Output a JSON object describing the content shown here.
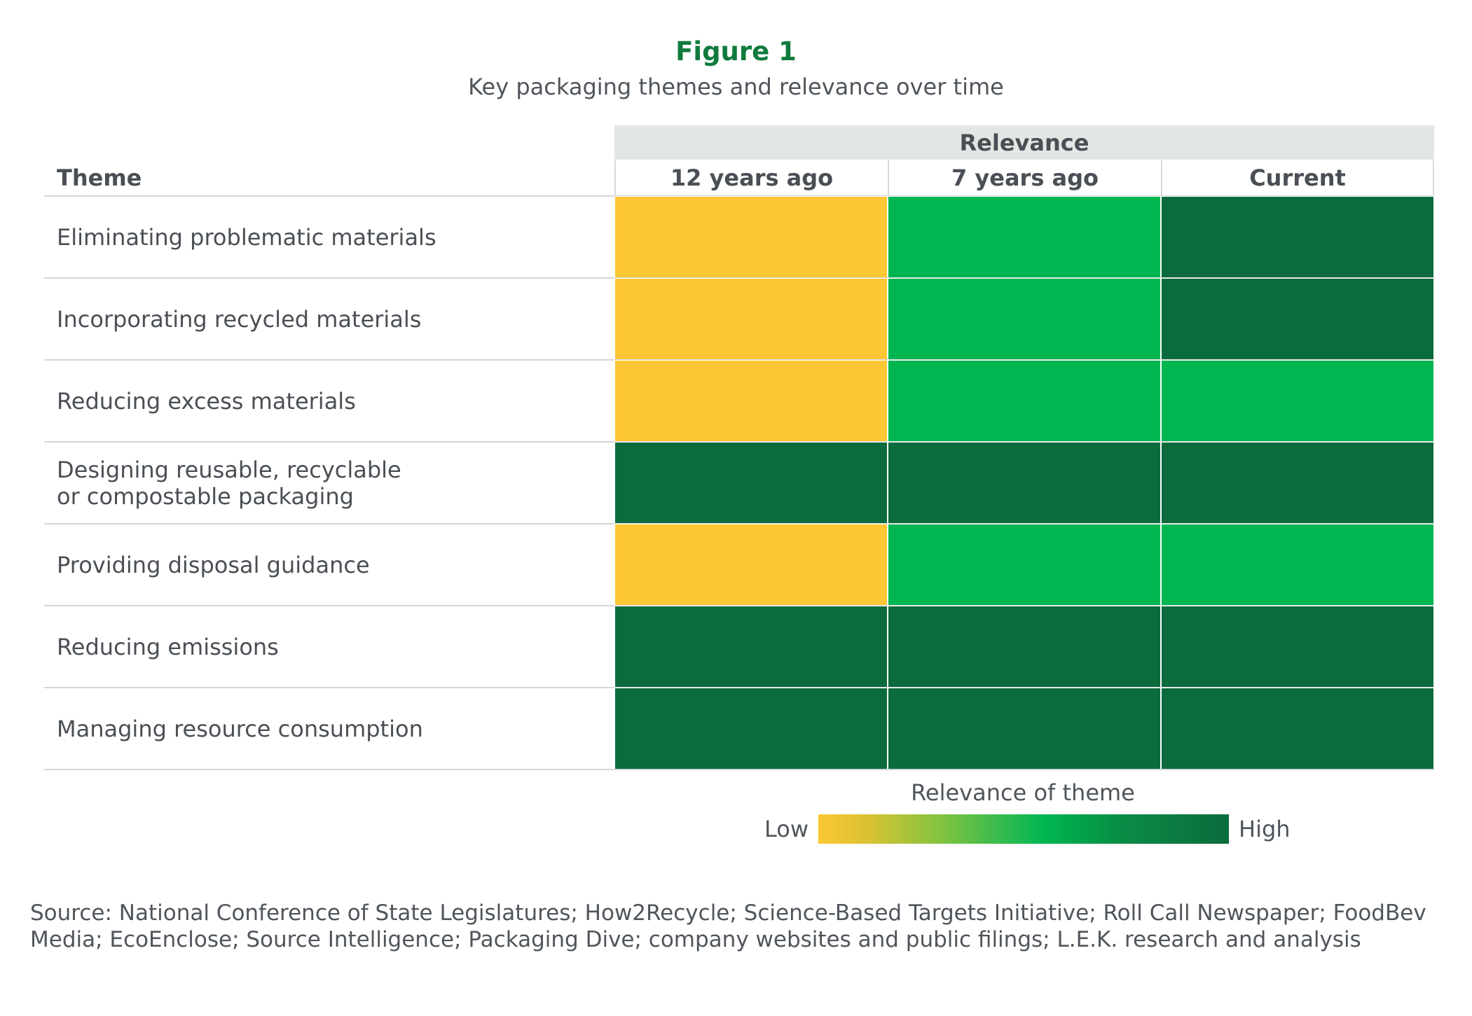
{
  "colors": {
    "title": "#0f7a3c",
    "header_band": "#e1e8e4",
    "grid_line": "#d3d6d9",
    "level_low": "#fdc734",
    "level_medium": "#00b650",
    "level_high": "#0b6b3c"
  },
  "chart_data": {
    "type": "heatmap",
    "title": "Figure 1",
    "subtitle": "Key packaging themes and relevance over time",
    "column_group_label": "Relevance",
    "row_header": "Theme",
    "columns": [
      "12 years ago",
      "7 years ago",
      "Current"
    ],
    "rows": [
      "Eliminating problematic materials",
      "Incorporating recycled materials",
      "Reducing excess materials",
      "Designing reusable, recyclable\nor compostable packaging",
      "Providing disposal guidance",
      "Reducing emissions",
      "Managing resource consumption"
    ],
    "levels": [
      "low",
      "medium",
      "high"
    ],
    "values": [
      [
        "low",
        "medium",
        "high"
      ],
      [
        "low",
        "medium",
        "high"
      ],
      [
        "low",
        "medium",
        "medium"
      ],
      [
        "high",
        "high",
        "high"
      ],
      [
        "low",
        "medium",
        "medium"
      ],
      [
        "high",
        "high",
        "high"
      ],
      [
        "high",
        "high",
        "high"
      ]
    ],
    "legend": {
      "title": "Relevance of theme",
      "low_label": "Low",
      "high_label": "High"
    }
  },
  "source": "Source: National Conference of State Legislatures; How2Recycle; Science-Based Targets Initiative; Roll Call Newspaper; FoodBev Media; EcoEnclose; Source Intelligence; Packaging Dive; company websites and public filings; L.E.K. research and analysis"
}
